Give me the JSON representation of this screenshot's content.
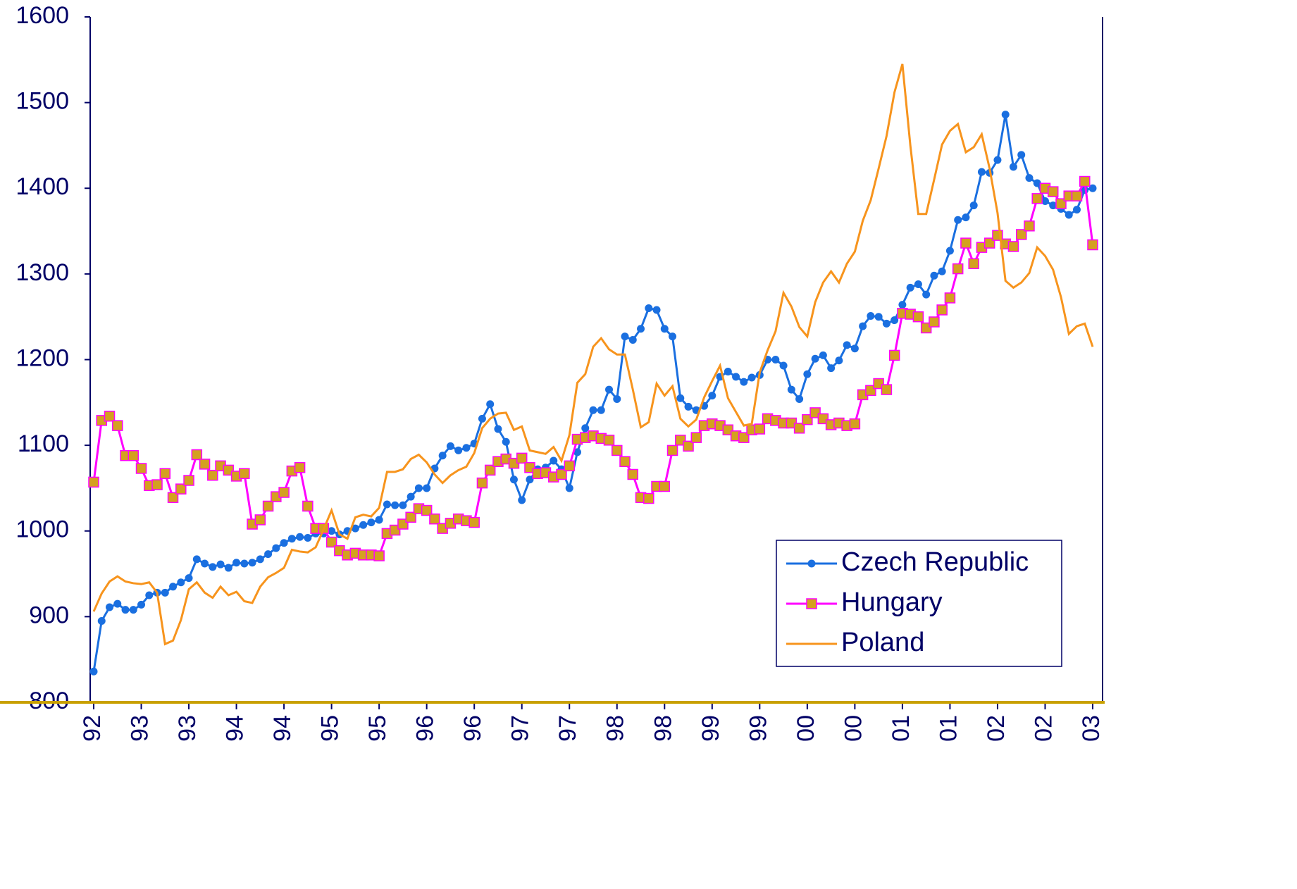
{
  "chart_data": {
    "type": "line",
    "categories": [
      "92",
      null,
      null,
      null,
      null,
      null,
      "93",
      null,
      null,
      null,
      null,
      null,
      "93",
      null,
      null,
      null,
      null,
      null,
      "94",
      null,
      null,
      null,
      null,
      null,
      "94",
      null,
      null,
      null,
      null,
      null,
      "95",
      null,
      null,
      null,
      null,
      null,
      "95",
      null,
      null,
      null,
      null,
      null,
      "96",
      null,
      null,
      null,
      null,
      null,
      "96",
      null,
      null,
      null,
      null,
      null,
      "97",
      null,
      null,
      null,
      null,
      null,
      "97",
      null,
      null,
      null,
      null,
      null,
      "98",
      null,
      null,
      null,
      null,
      null,
      "98",
      null,
      null,
      null,
      null,
      null,
      "99",
      null,
      null,
      null,
      null,
      null,
      "99",
      null,
      null,
      null,
      null,
      null,
      "00",
      null,
      null,
      null,
      null,
      null,
      "00",
      null,
      null,
      null,
      null,
      null,
      "01",
      null,
      null,
      null,
      null,
      null,
      "01",
      null,
      null,
      null,
      null,
      null,
      "02",
      null,
      null,
      null,
      null,
      null,
      "02",
      null,
      null,
      null,
      null,
      null,
      "03"
    ],
    "series": [
      {
        "name": "Czech Republic",
        "color": "#1a6fe0",
        "marker": "circle",
        "marker_color": "#1a6fe0",
        "values": [
          836,
          895,
          911,
          915,
          908,
          908,
          914,
          925,
          928,
          928,
          935,
          940,
          945,
          967,
          962,
          958,
          961,
          957,
          963,
          962,
          963,
          967,
          973,
          980,
          986,
          991,
          993,
          992,
          997,
          997,
          1000,
          996,
          1000,
          1003,
          1007,
          1010,
          1013,
          1031,
          1030,
          1030,
          1040,
          1050,
          1050,
          1073,
          1088,
          1099,
          1094,
          1097,
          1102,
          1131,
          1148,
          1119,
          1104,
          1060,
          1036,
          1060,
          1072,
          1074,
          1082,
          1072,
          1050,
          1092,
          1120,
          1141,
          1141,
          1165,
          1154,
          1227,
          1223,
          1236,
          1260,
          1258,
          1236,
          1227,
          1155,
          1145,
          1141,
          1146,
          1158,
          1180,
          1186,
          1180,
          1174,
          1179,
          1182,
          1200,
          1200,
          1193,
          1165,
          1154,
          1183,
          1201,
          1205,
          1190,
          1199,
          1217,
          1213,
          1239,
          1251,
          1250,
          1242,
          1246,
          1264,
          1284,
          1288,
          1276,
          1298,
          1303,
          1327,
          1363,
          1366,
          1380,
          1419,
          1418,
          1433,
          1486,
          1425,
          1439,
          1412,
          1406,
          1385,
          1380,
          1376,
          1369,
          1375,
          1398,
          1400
        ]
      },
      {
        "name": "Hungary",
        "color": "#ff00ff",
        "marker": "square",
        "marker_color": "#d4a020",
        "values": [
          1057,
          1129,
          1134,
          1123,
          1088,
          1088,
          1073,
          1053,
          1054,
          1067,
          1039,
          1049,
          1059,
          1089,
          1078,
          1065,
          1076,
          1071,
          1064,
          1067,
          1008,
          1013,
          1029,
          1040,
          1045,
          1070,
          1074,
          1029,
          1003,
          1003,
          987,
          977,
          972,
          974,
          972,
          972,
          971,
          997,
          1001,
          1008,
          1016,
          1026,
          1024,
          1014,
          1003,
          1009,
          1014,
          1012,
          1010,
          1056,
          1071,
          1081,
          1084,
          1079,
          1085,
          1074,
          1067,
          1068,
          1063,
          1066,
          1076,
          1107,
          1109,
          1111,
          1108,
          1106,
          1094,
          1081,
          1066,
          1039,
          1038,
          1052,
          1052,
          1094,
          1106,
          1099,
          1109,
          1123,
          1125,
          1123,
          1118,
          1111,
          1109,
          1118,
          1119,
          1131,
          1129,
          1126,
          1126,
          1120,
          1130,
          1138,
          1131,
          1124,
          1126,
          1123,
          1125,
          1159,
          1164,
          1172,
          1165,
          1205,
          1254,
          1253,
          1250,
          1237,
          1244,
          1258,
          1272,
          1306,
          1336,
          1312,
          1331,
          1336,
          1345,
          1335,
          1332,
          1346,
          1356,
          1388,
          1400,
          1396,
          1382,
          1391,
          1391,
          1408,
          1334
        ]
      },
      {
        "name": "Poland",
        "color": "#f7941d",
        "marker": "none",
        "marker_color": "#f7941d",
        "values": [
          906,
          927,
          941,
          947,
          941,
          939,
          938,
          940,
          928,
          868,
          872,
          896,
          932,
          940,
          928,
          922,
          935,
          925,
          929,
          918,
          916,
          935,
          946,
          951,
          957,
          978,
          976,
          975,
          981,
          1002,
          1024,
          996,
          991,
          1016,
          1019,
          1017,
          1027,
          1069,
          1069,
          1072,
          1084,
          1089,
          1080,
          1066,
          1056,
          1065,
          1071,
          1075,
          1091,
          1120,
          1131,
          1137,
          1138,
          1118,
          1122,
          1094,
          1092,
          1090,
          1098,
          1082,
          1112,
          1173,
          1183,
          1215,
          1225,
          1212,
          1206,
          1206,
          1165,
          1121,
          1127,
          1172,
          1158,
          1169,
          1131,
          1122,
          1130,
          1156,
          1175,
          1193,
          1155,
          1139,
          1123,
          1125,
          1185,
          1211,
          1233,
          1278,
          1262,
          1238,
          1227,
          1267,
          1290,
          1303,
          1290,
          1312,
          1326,
          1362,
          1386,
          1423,
          1461,
          1512,
          1545,
          1450,
          1370,
          1370,
          1410,
          1451,
          1467,
          1475,
          1442,
          1448,
          1463,
          1423,
          1371,
          1292,
          1284,
          1290,
          1301,
          1331,
          1321,
          1305,
          1273,
          1230,
          1239,
          1242,
          1215
        ]
      }
    ],
    "ylim": [
      800,
      1600
    ],
    "yticks": [
      800,
      900,
      1000,
      1100,
      1200,
      1300,
      1400,
      1500,
      1600
    ],
    "legend": "lower-right"
  }
}
